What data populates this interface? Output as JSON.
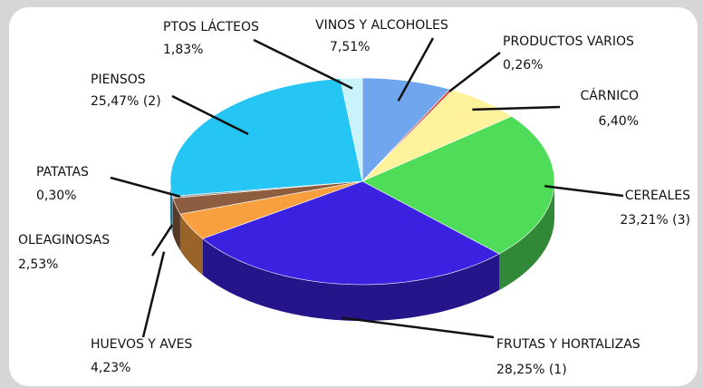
{
  "chart_data": {
    "type": "pie",
    "categories": [
      "VINOS Y ALCOHOLES",
      "PRODUCTOS VARIOS",
      "CÁRNICO",
      "CEREALES",
      "FRUTAS Y HORTALIZAS",
      "HUEVOS Y AVES",
      "OLEAGINOSAS",
      "PATATAS",
      "PIENSOS",
      "PTOS LÁCTEOS"
    ],
    "values": [
      7.51,
      0.26,
      6.4,
      23.21,
      28.25,
      4.23,
      2.53,
      0.3,
      25.47,
      1.83
    ],
    "value_labels": [
      "7,51%",
      "0,26%",
      "6,40%",
      "23,21% (3)",
      "28,25% (1)",
      "4,23%",
      "2,53%",
      "0,30%",
      "25,47% (2)",
      "1,83%"
    ],
    "colors": [
      "#6fa6ee",
      "#e2402a",
      "#fff29c",
      "#4fdc58",
      "#3b22e0",
      "#f8a040",
      "#8e5c3e",
      "#9a9a9a",
      "#26c6f4",
      "#c8f3fb"
    ]
  }
}
